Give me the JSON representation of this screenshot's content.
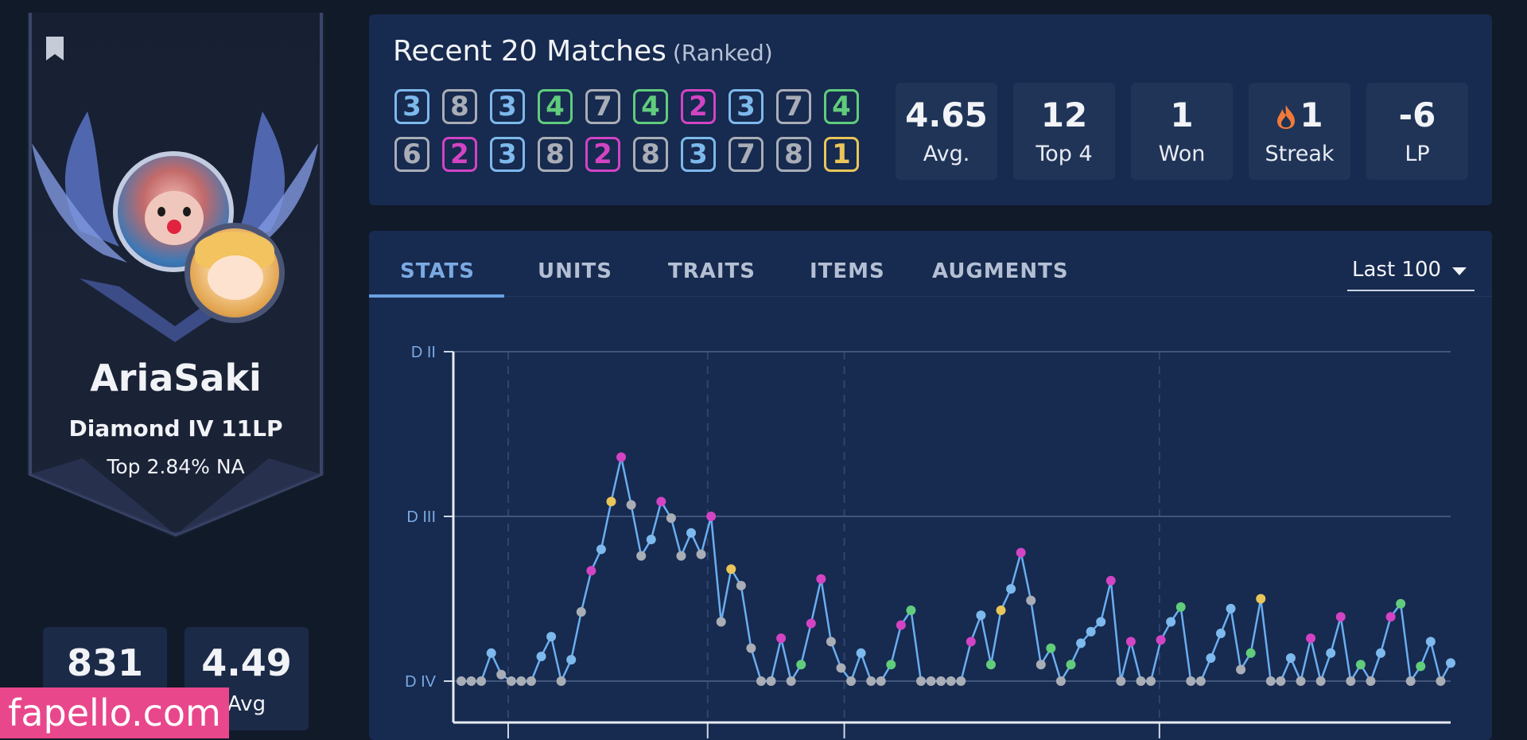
{
  "profile": {
    "name": "AriaSaki",
    "rank": "Diamond IV 11LP",
    "top": "Top 2.84% NA",
    "mini_stats": [
      {
        "value": "831",
        "label": ""
      },
      {
        "value": "4.49",
        "label": "Avg"
      }
    ]
  },
  "watermark": "fapello.com",
  "recent": {
    "title": "Recent 20 Matches",
    "subtitle": "(Ranked)",
    "placements_row1": [
      3,
      8,
      3,
      4,
      7,
      4,
      2,
      3,
      7,
      4
    ],
    "placements_row2": [
      6,
      2,
      3,
      8,
      2,
      8,
      3,
      7,
      8,
      1
    ],
    "stats": [
      {
        "value": "4.65",
        "label": "Avg."
      },
      {
        "value": "12",
        "label": "Top 4"
      },
      {
        "value": "1",
        "label": "Won"
      },
      {
        "value": "1",
        "label": "Streak"
      },
      {
        "value": "-6",
        "label": "LP"
      }
    ]
  },
  "tabs": [
    "STATS",
    "UNITS",
    "TRAITS",
    "ITEMS",
    "AUGMENTS"
  ],
  "active_tab": "STATS",
  "period": "Last 100",
  "colors": {
    "first": "#e9c55a",
    "second": "#d244c4",
    "top4": "#7db9ec",
    "fourth": "#60cc7c",
    "bottom": "#a9adb6",
    "line": "#6aaef0"
  },
  "chart_data": {
    "type": "line",
    "ylabels": [
      "D II",
      "D III",
      "D IV"
    ],
    "yticks": [
      2,
      1,
      0
    ],
    "ylim": [
      -0.25,
      2
    ],
    "xlim": [
      0,
      101
    ],
    "grid": true,
    "series": [
      {
        "values": [
          0,
          0,
          0,
          0.17,
          0.04,
          0,
          0,
          0,
          0.15,
          0.27,
          0,
          0.13,
          0.42,
          0.67,
          0.8,
          1.09,
          1.36,
          1.07,
          0.76,
          0.86,
          1.09,
          0.99,
          0.76,
          0.9,
          0.77,
          1,
          0.36,
          0.68,
          0.58,
          0.2,
          0,
          0,
          0.26,
          0,
          0.1,
          0.35,
          0.62,
          0.24,
          0.08,
          0,
          0.17,
          0,
          0,
          0.1,
          0.34,
          0.43,
          0,
          0,
          0,
          0,
          0,
          0.24,
          0.4,
          0.1,
          0.43,
          0.56,
          0.78,
          0.49,
          0.1,
          0.2,
          0,
          0.1,
          0.23,
          0.3,
          0.36,
          0.61,
          0,
          0.24,
          0,
          0,
          0.25,
          0.36,
          0.45,
          0,
          0,
          0.14,
          0.29,
          0.44,
          0.07,
          0.17,
          0.5,
          0,
          0,
          0.14,
          0,
          0.26,
          0,
          0.17,
          0.39,
          0,
          0.1,
          0,
          0.17,
          0.39,
          0.47,
          0,
          0.09,
          0.24,
          0,
          0.11
        ],
        "placements": [
          7,
          7,
          7,
          3,
          8,
          7,
          7,
          7,
          3,
          3,
          8,
          3,
          5,
          2,
          3,
          1,
          2,
          7,
          8,
          3,
          2,
          8,
          7,
          3,
          8,
          2,
          8,
          1,
          8,
          8,
          7,
          7,
          2,
          7,
          4,
          2,
          2,
          8,
          8,
          8,
          3,
          8,
          7,
          4,
          2,
          4,
          7,
          7,
          7,
          7,
          7,
          2,
          3,
          4,
          1,
          3,
          2,
          8,
          8,
          4,
          8,
          4,
          3,
          3,
          3,
          2,
          8,
          2,
          8,
          7,
          2,
          3,
          4,
          8,
          8,
          3,
          3,
          3,
          8,
          4,
          1,
          8,
          7,
          3,
          7,
          2,
          7,
          3,
          2,
          8,
          4,
          8,
          3,
          2,
          4,
          8,
          4,
          3,
          8,
          3
        ]
      }
    ]
  }
}
